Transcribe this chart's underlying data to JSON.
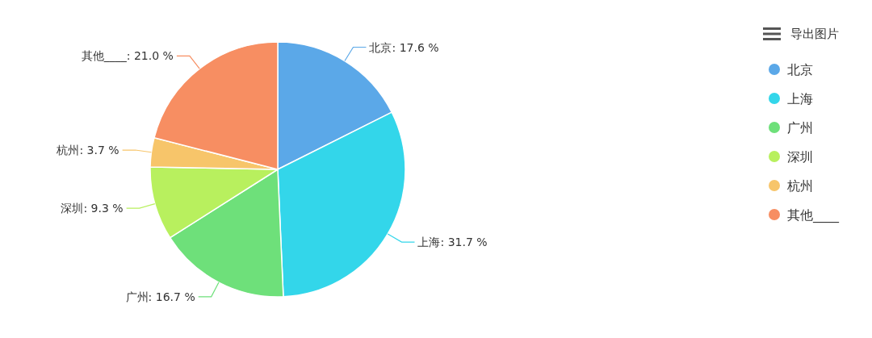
{
  "chart_data": {
    "type": "pie",
    "categories": [
      "北京",
      "上海",
      "广州",
      "深圳",
      "杭州",
      "其他____"
    ],
    "values": [
      17.6,
      31.7,
      16.7,
      9.3,
      3.7,
      21.0
    ],
    "colors": [
      "#5ba8e8",
      "#33d6ea",
      "#6ee07a",
      "#b8f05e",
      "#f7c56a",
      "#f78e62"
    ],
    "value_labels": [
      "北京: 17.6 %",
      "上海: 31.7 %",
      "广州: 16.7 %",
      "深圳: 9.3 %",
      "杭州: 3.7 %",
      "其他____: 21.0 %"
    ],
    "legend": "top right",
    "annotations": [
      "导出图片"
    ]
  }
}
